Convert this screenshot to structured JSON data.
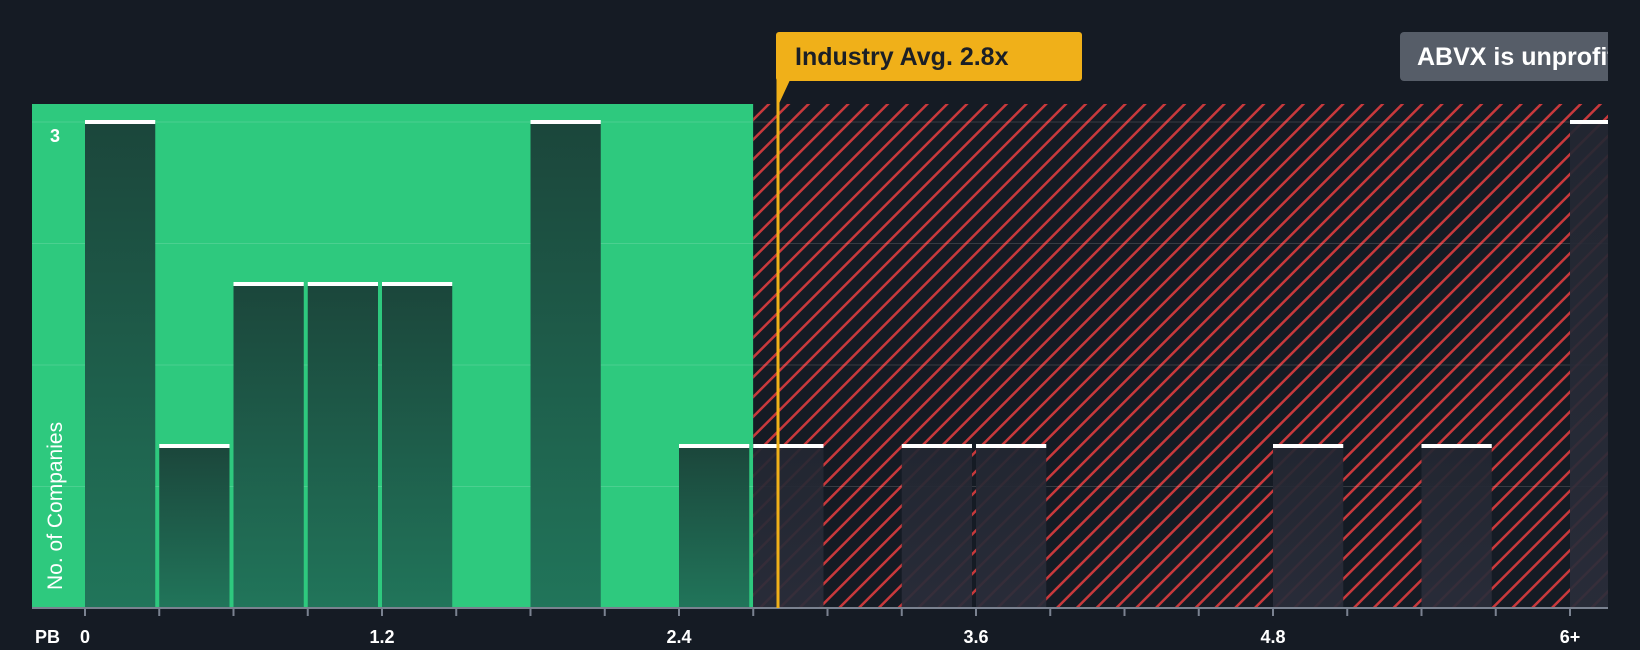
{
  "chart_data": {
    "type": "bar",
    "xlabel": "PB",
    "ylabel": "No. of Companies",
    "x_ticks": [
      "0",
      "1.2",
      "2.4",
      "3.6",
      "4.8",
      "6+"
    ],
    "x_tick_values": [
      0,
      1.2,
      2.4,
      3.6,
      4.8,
      6
    ],
    "y_ticks": [
      "3"
    ],
    "ylim": [
      0,
      3
    ],
    "xlim": [
      0,
      6.15
    ],
    "bin_width": 0.3,
    "bins": [
      {
        "start": 0.0,
        "count": 3
      },
      {
        "start": 0.3,
        "count": 1
      },
      {
        "start": 0.6,
        "count": 2
      },
      {
        "start": 0.9,
        "count": 2
      },
      {
        "start": 1.2,
        "count": 2
      },
      {
        "start": 1.8,
        "count": 3
      },
      {
        "start": 2.4,
        "count": 1
      },
      {
        "start": 2.7,
        "count": 1
      },
      {
        "start": 3.3,
        "count": 1
      },
      {
        "start": 3.6,
        "count": 1
      },
      {
        "start": 4.8,
        "count": 1
      },
      {
        "start": 5.4,
        "count": 1
      },
      {
        "start": 6.0,
        "count": 3
      }
    ],
    "fair_region_end": 2.7,
    "industry_avg": 2.8,
    "industry_avg_label": "Industry Avg. 2.8x",
    "company_label": "ABVX is unprofitable",
    "grid": true
  },
  "colors": {
    "background": "#151b24",
    "fair_region": "#2ec97e",
    "overvalued_stripe": "#c8393c",
    "bar_fair": "#1b4a3c",
    "bar_over": "#262a35",
    "avg_marker": "#f0b019",
    "company_badge": "#565d68"
  }
}
